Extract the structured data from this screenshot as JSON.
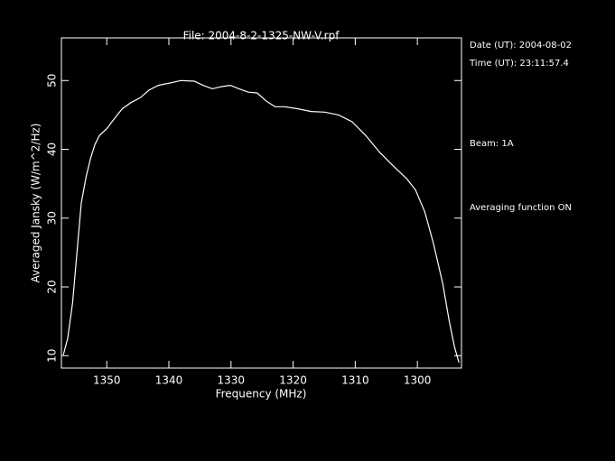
{
  "chart_data": {
    "type": "line",
    "title": "File: 2004-8-2-1325-NW-V.rpf",
    "x_label": "Frequency (MHz)",
    "y_label": "Averaged Jansky (W/m^2/Hz)",
    "annotations": [
      "Date (UT): 2004-08-02",
      "Time (UT): 23:11:57.4",
      "Beam: 1A",
      "Averaging function ON"
    ],
    "color": "#ffffff",
    "x": [
      1357.0,
      1356.3,
      1355.5,
      1354.8,
      1354.1,
      1353.3,
      1352.6,
      1351.9,
      1351.2,
      1350,
      1349,
      1347.5,
      1346.1,
      1344.6,
      1343.2,
      1341.7,
      1339.5,
      1338.1,
      1335.9,
      1334.5,
      1333.0,
      1331.6,
      1330.1,
      1328.7,
      1327.2,
      1325.8,
      1324.3,
      1322.9,
      1321.4,
      1319.3,
      1317.1,
      1314.9,
      1312.7,
      1310.5,
      1308.3,
      1306.1,
      1304.0,
      1301.7,
      1300.3,
      1298.8,
      1297.4,
      1295.9,
      1294.9,
      1294.0,
      1293.3
    ],
    "values": [
      10.1,
      12.5,
      17.7,
      25.0,
      32.2,
      36.1,
      38.7,
      40.7,
      42.0,
      43.0,
      44.2,
      45.9,
      46.8,
      47.5,
      48.6,
      49.3,
      49.7,
      50.0,
      49.9,
      49.3,
      48.8,
      49.1,
      49.3,
      48.8,
      48.3,
      48.2,
      47.0,
      46.2,
      46.2,
      45.9,
      45.5,
      45.4,
      45.0,
      44.0,
      42.0,
      39.6,
      37.7,
      35.7,
      34.1,
      30.9,
      26.3,
      20.4,
      15.2,
      11.2,
      9.0
    ],
    "xlim": [
      1357.3,
      1292.9
    ],
    "ylim": [
      8.2,
      56.2
    ],
    "xticks": [
      1350,
      1340,
      1330,
      1320,
      1310,
      1300
    ],
    "yticks": [
      10,
      20,
      30,
      40,
      50
    ]
  }
}
